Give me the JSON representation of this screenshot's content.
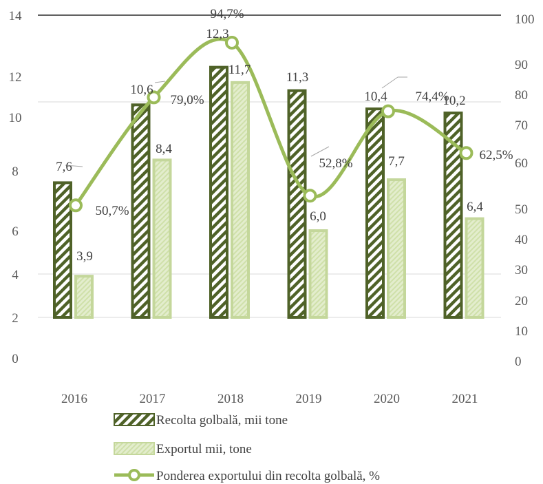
{
  "chart_data": {
    "type": "bar",
    "categories": [
      "2016",
      "2017",
      "2018",
      "2019",
      "2020",
      "2021"
    ],
    "series": [
      {
        "name": "Recolta golbală, mii tone",
        "kind": "bar",
        "axis": "left",
        "values": [
          7.6,
          10.6,
          12.3,
          11.3,
          10.4,
          10.2
        ],
        "value_labels": [
          "7,6",
          "10,6",
          "12,3",
          "11,3",
          "10,4",
          "10,2"
        ],
        "color": "#4f6228",
        "pattern": "diagonal-stripes"
      },
      {
        "name": "Exportul mii, tone",
        "kind": "bar",
        "axis": "left",
        "values": [
          3.9,
          8.4,
          11.7,
          6.0,
          7.7,
          6.4
        ],
        "value_labels": [
          "3,9",
          "8,4",
          "11,7",
          "6,0",
          "7,7",
          "6,4"
        ],
        "color": "#c4d79b",
        "pattern": "light-dots"
      },
      {
        "name": "Ponderea exportului din recolta golbală, %",
        "kind": "line",
        "axis": "right",
        "values": [
          50.7,
          79.0,
          94.7,
          52.8,
          74.4,
          62.5
        ],
        "value_labels": [
          "50,7%",
          "79,0%",
          "94,7%",
          "52,8%",
          "74,4%",
          "62,5%"
        ],
        "color": "#9bbb59"
      }
    ],
    "y_left_ticks": [
      "0",
      "2",
      "4",
      "6",
      "8",
      "10",
      "12",
      "14"
    ],
    "y_right_ticks": [
      "0",
      "10",
      "20",
      "30",
      "40",
      "50",
      "60",
      "70",
      "80",
      "90",
      "100"
    ],
    "y_left_range": [
      0,
      14
    ],
    "y_right_range": [
      0,
      100
    ],
    "gridlines": true,
    "legend_position": "bottom"
  }
}
